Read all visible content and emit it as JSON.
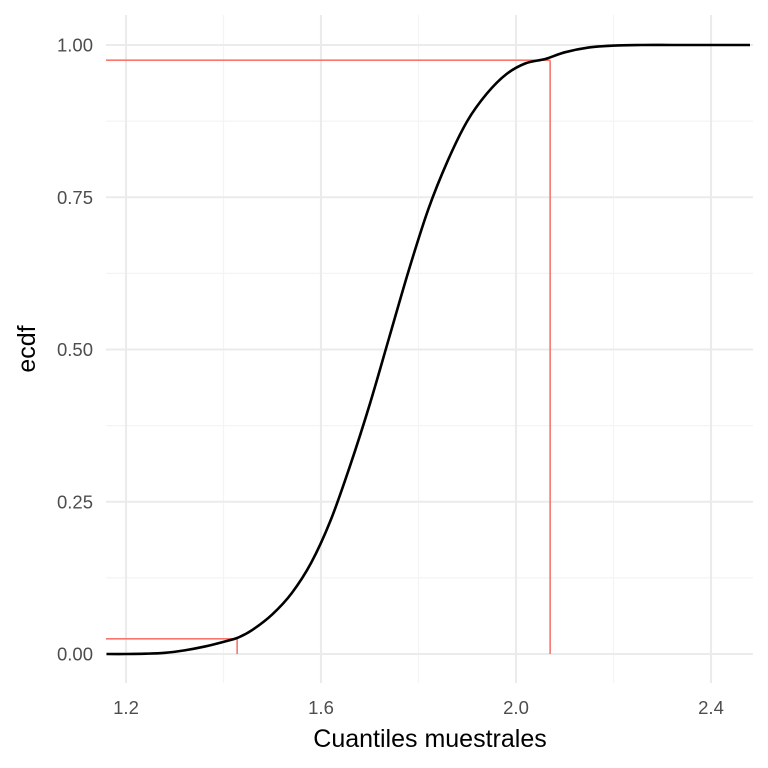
{
  "chart_data": {
    "type": "line",
    "title": "",
    "xlabel": "Cuantiles muestrales",
    "ylabel": "ecdf",
    "xlim": [
      1.16,
      2.48
    ],
    "ylim": [
      0.0,
      1.0
    ],
    "x_ticks": [
      1.2,
      1.6,
      2.0,
      2.4
    ],
    "x_tick_labels": [
      "1.2",
      "1.6",
      "2.0",
      "2.4"
    ],
    "x_minor_ticks": [
      1.4,
      1.8,
      2.2
    ],
    "y_ticks": [
      0.0,
      0.25,
      0.5,
      0.75,
      1.0
    ],
    "y_tick_labels": [
      "0.00",
      "0.25",
      "0.50",
      "0.75",
      "1.00"
    ],
    "y_minor_ticks": [
      0.125,
      0.375,
      0.625,
      0.875
    ],
    "grid": true,
    "legend": "none",
    "series": [
      {
        "color": "#000000",
        "x": [
          1.16,
          1.2,
          1.24,
          1.28,
          1.32,
          1.36,
          1.4,
          1.43,
          1.46,
          1.5,
          1.54,
          1.58,
          1.62,
          1.66,
          1.7,
          1.74,
          1.78,
          1.82,
          1.86,
          1.9,
          1.94,
          1.98,
          2.02,
          2.06,
          2.1,
          2.15,
          2.2,
          2.26,
          2.32,
          2.4,
          2.48
        ],
        "y": [
          0.0,
          0.0,
          0.0005,
          0.002,
          0.006,
          0.012,
          0.02,
          0.027,
          0.04,
          0.065,
          0.1,
          0.15,
          0.22,
          0.31,
          0.41,
          0.52,
          0.63,
          0.73,
          0.81,
          0.875,
          0.92,
          0.952,
          0.97,
          0.977,
          0.988,
          0.996,
          0.999,
          1.0,
          1.0,
          1.0,
          1.0
        ]
      }
    ],
    "reference_lines": [
      {
        "color": "#f8766d",
        "x": 1.428,
        "y": 0.025
      },
      {
        "color": "#f8766d",
        "x": 2.07,
        "y": 0.975
      }
    ]
  }
}
